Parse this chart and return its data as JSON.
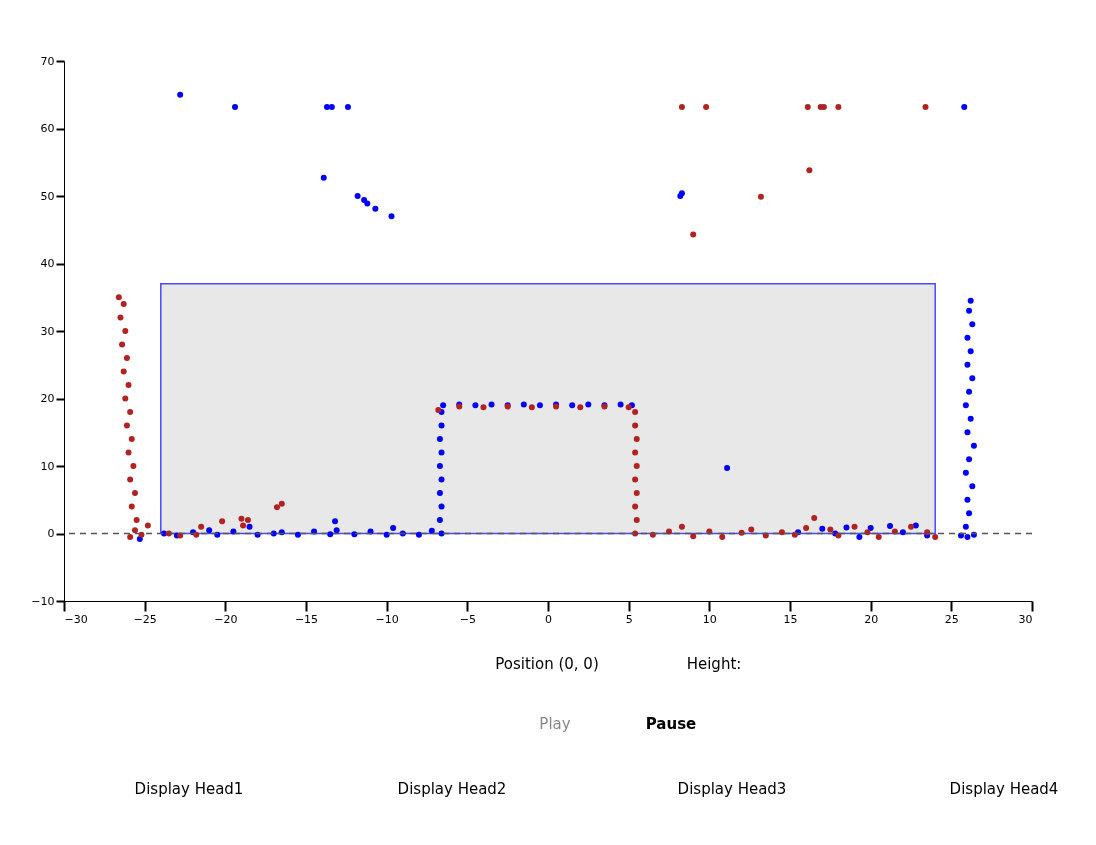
{
  "chart_data": {
    "type": "scatter",
    "xlim": [
      -30,
      30
    ],
    "ylim": [
      -10,
      70
    ],
    "xticks": [
      -30,
      -25,
      -20,
      -15,
      -10,
      -5,
      0,
      5,
      10,
      15,
      20,
      25,
      30
    ],
    "yticks": [
      -10,
      0,
      10,
      20,
      30,
      40,
      50,
      60,
      70
    ],
    "grid": false,
    "ref_lines": [
      {
        "axis": "y",
        "value": 0,
        "line_style": "dashed",
        "color": "#555555"
      }
    ],
    "series": [
      {
        "color": "#0000ff",
        "marker": "circle",
        "x": [
          25.6,
          26.0,
          26.4,
          25.9,
          26.1,
          26.0,
          26.3,
          25.9,
          26.1,
          26.4,
          26.0,
          26.2,
          25.9,
          26.1,
          26.3,
          26.0,
          26.2,
          26.0,
          26.3,
          26.1,
          26.2,
          -6.6,
          -6.7,
          -6.6,
          -6.7,
          -6.6,
          -6.7,
          -6.6,
          -6.7,
          -6.6,
          -6.6,
          -6.5,
          -5.5,
          -4.5,
          -3.5,
          -2.5,
          -1.5,
          -0.5,
          0.5,
          1.5,
          2.5,
          3.5,
          4.5,
          5.2,
          -25.3,
          -23.8,
          -23.0,
          -22.0,
          -21.0,
          -20.5,
          -19.5,
          -18.5,
          -18.0,
          -17.0,
          -16.5,
          -15.5,
          -14.5,
          -13.5,
          -13.2,
          -13.1,
          -12.0,
          -11.0,
          -10.0,
          -9.6,
          -9.0,
          -8.0,
          -7.2,
          11.1,
          15.5,
          17.0,
          17.8,
          18.5,
          19.3,
          20.0,
          21.2,
          22.0,
          22.8,
          23.5,
          -22.8,
          -19.4,
          -13.7,
          -13.4,
          -12.4,
          -13.9,
          -11.8,
          -11.4,
          -11.2,
          -10.7,
          -9.7,
          8.2,
          8.3,
          25.8
        ],
        "values": [
          -0.3,
          -0.5,
          -0.2,
          1,
          3,
          5,
          7,
          9,
          11,
          13,
          15,
          17,
          19,
          21,
          23,
          25,
          27,
          29,
          31,
          33,
          34.5,
          0,
          2,
          4,
          6,
          8,
          10,
          12,
          14,
          16,
          18,
          19,
          19.1,
          19,
          19.1,
          19,
          19.1,
          19,
          19.1,
          19,
          19.1,
          19,
          19.1,
          19,
          -0.8,
          0,
          -0.3,
          0.2,
          0.5,
          -0.2,
          0.3,
          1,
          -0.2,
          0,
          0.2,
          -0.2,
          0.3,
          -0.1,
          1.8,
          0.5,
          -0.1,
          0.3,
          -0.2,
          0.8,
          0,
          -0.2,
          0.4,
          9.7,
          0.2,
          0.7,
          0,
          0.9,
          -0.5,
          0.8,
          1.1,
          0.2,
          1.2,
          -0.3,
          65,
          63.2,
          63.2,
          63.2,
          63.2,
          52.7,
          50,
          49.4,
          48.9,
          48.1,
          47,
          50,
          50.4,
          63.2
        ]
      },
      {
        "color": "#b22222",
        "marker": "circle",
        "x": [
          -26.6,
          -26.3,
          -26.5,
          -26.2,
          -26.4,
          -26.1,
          -26.3,
          -26.0,
          -26.2,
          -25.9,
          -26.1,
          -25.8,
          -26.0,
          -25.7,
          -25.9,
          -25.6,
          -25.8,
          -25.5,
          -25.6,
          -25.9,
          -25.2,
          -24.8,
          -23.5,
          -22.8,
          -21.5,
          -20.2,
          -19.0,
          -18.6,
          -18.9,
          -16.8,
          -16.5,
          -21.8,
          -6.8,
          -5.5,
          -4.0,
          -2.5,
          -1.0,
          0.5,
          2.0,
          3.5,
          5.0,
          5.4,
          5.4,
          5.5,
          5.4,
          5.5,
          5.4,
          5.5,
          5.4,
          5.5,
          5.4,
          6.5,
          7.5,
          8.3,
          9.0,
          10.0,
          10.8,
          12.0,
          12.6,
          13.5,
          14.5,
          15.3,
          16.0,
          16.5,
          17.5,
          18.0,
          19.0,
          19.8,
          20.5,
          21.5,
          22.5,
          23.5,
          24.0,
          8.3,
          9.8,
          16.1,
          16.9,
          17.1,
          18.0,
          23.4,
          16.2,
          13.2,
          9.0
        ],
        "values": [
          35,
          34,
          32,
          30,
          28,
          26,
          24,
          22,
          20,
          18,
          16,
          14,
          12,
          10,
          8,
          6,
          4,
          2,
          0.5,
          -0.5,
          -0.2,
          1.2,
          0,
          -0.3,
          1,
          1.8,
          2.2,
          2,
          1.2,
          3.9,
          4.4,
          -0.2,
          18.3,
          18.8,
          18.7,
          18.8,
          18.7,
          18.8,
          18.7,
          18.8,
          18.7,
          18,
          16,
          14,
          12,
          10,
          8,
          6,
          4,
          2,
          0,
          -0.2,
          0.3,
          1,
          -0.4,
          0.3,
          -0.5,
          0.1,
          0.6,
          -0.3,
          0.2,
          -0.2,
          0.8,
          2.3,
          0.6,
          -0.3,
          1,
          0.2,
          -0.5,
          0.3,
          1,
          0.2,
          -0.5,
          63.2,
          63.2,
          63.2,
          63.2,
          63.2,
          63.2,
          63.2,
          53.8,
          49.9,
          44.3
        ]
      },
      {
        "type": "area",
        "color": "#e8e8e8",
        "x": [
          -24,
          24
        ],
        "values": [
          37,
          37
        ]
      }
    ],
    "annotations": [
      "Position (0, 0)",
      "Height:",
      "Play",
      "Pause",
      "Display Head1",
      "Display Head2",
      "Display Head3",
      "Display Head4"
    ]
  }
}
